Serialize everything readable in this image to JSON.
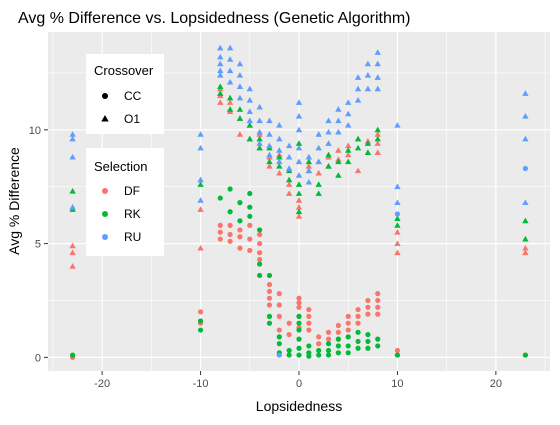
{
  "chart_data": {
    "type": "scatter",
    "title": "Avg % Difference vs. Lopsidedness (Genetic Algorithm)",
    "xlabel": "Lopsidedness",
    "ylabel": "Avg % Difference",
    "xlim": [
      -25.5,
      25.5
    ],
    "ylim": [
      -0.6,
      14.3
    ],
    "x_ticks": [
      -20,
      -10,
      0,
      10,
      20
    ],
    "y_ticks": [
      0,
      5,
      10
    ],
    "grid": true,
    "background": "#EBEBEB",
    "legend": {
      "placement": "top-left",
      "shape_title": "Crossover",
      "shapes": [
        {
          "label": "CC",
          "marker": "circle"
        },
        {
          "label": "O1",
          "marker": "triangle"
        }
      ],
      "color_title": "Selection",
      "colors": [
        {
          "label": "DF",
          "color": "#F8766D"
        },
        {
          "label": "RK",
          "color": "#00BA38"
        },
        {
          "label": "RU",
          "color": "#619CFF"
        }
      ]
    },
    "series": [
      {
        "selection": "DF",
        "crossover": "CC",
        "color": "#F8766D",
        "marker": "circle",
        "points": [
          [
            -23,
            0
          ],
          [
            -10,
            1.5
          ],
          [
            -10,
            2
          ],
          [
            -8,
            5.8
          ],
          [
            -8,
            5.5
          ],
          [
            -8,
            5.2
          ],
          [
            -7,
            5.8
          ],
          [
            -7,
            5.4
          ],
          [
            -7,
            5.1
          ],
          [
            -6,
            5.6
          ],
          [
            -6,
            5.3
          ],
          [
            -6,
            4.8
          ],
          [
            -5,
            5.8
          ],
          [
            -5,
            5.2
          ],
          [
            -5,
            4.7
          ],
          [
            -4,
            5.4
          ],
          [
            -4,
            5.0
          ],
          [
            -4,
            4.6
          ],
          [
            -4,
            4.3
          ],
          [
            -3,
            3.2
          ],
          [
            -3,
            2.9
          ],
          [
            -3,
            2.6
          ],
          [
            -3,
            2.3
          ],
          [
            -2,
            2.8
          ],
          [
            -2,
            2.3
          ],
          [
            -2,
            1.8
          ],
          [
            -2,
            1.2
          ],
          [
            -1,
            1.5
          ],
          [
            -1,
            1.0
          ],
          [
            0,
            2.6
          ],
          [
            0,
            2.4
          ],
          [
            0,
            2.2
          ],
          [
            0,
            1.8
          ],
          [
            0,
            1.3
          ],
          [
            1,
            2.1
          ],
          [
            1,
            1.8
          ],
          [
            1,
            1.5
          ],
          [
            1,
            1.2
          ],
          [
            2,
            0.9
          ],
          [
            2,
            0.6
          ],
          [
            3,
            1.1
          ],
          [
            3,
            0.8
          ],
          [
            4,
            1.4
          ],
          [
            4,
            1.1
          ],
          [
            4,
            0.8
          ],
          [
            5,
            1.8
          ],
          [
            5,
            1.5
          ],
          [
            5,
            1.2
          ],
          [
            6,
            2.1
          ],
          [
            6,
            1.8
          ],
          [
            6,
            1.5
          ],
          [
            7,
            2.5
          ],
          [
            7,
            2.2
          ],
          [
            7,
            1.9
          ],
          [
            8,
            2.8
          ],
          [
            8,
            2.5
          ],
          [
            8,
            2.2
          ],
          [
            8,
            1.9
          ],
          [
            10,
            0.3
          ],
          [
            10,
            0.1
          ],
          [
            23,
            0.1
          ]
        ]
      },
      {
        "selection": "DF",
        "crossover": "O1",
        "color": "#F8766D",
        "marker": "triangle",
        "points": [
          [
            -23,
            4.0
          ],
          [
            -23,
            4.6
          ],
          [
            -23,
            4.9
          ],
          [
            -10,
            4.8
          ],
          [
            -10,
            6.5
          ],
          [
            -8,
            11.2
          ],
          [
            -8,
            11.5
          ],
          [
            -8,
            11.8
          ],
          [
            -7,
            10.8
          ],
          [
            -7,
            11.2
          ],
          [
            -6,
            10.5
          ],
          [
            -6,
            9.8
          ],
          [
            -5,
            10.2
          ],
          [
            -5,
            9.6
          ],
          [
            -4,
            9.8
          ],
          [
            -4,
            9.2
          ],
          [
            -3,
            8.8
          ],
          [
            -3,
            8.4
          ],
          [
            -2,
            8.9
          ],
          [
            -2,
            8.1
          ],
          [
            -1,
            7.6
          ],
          [
            -1,
            7.2
          ],
          [
            0,
            6.9
          ],
          [
            0,
            6.6
          ],
          [
            0,
            6.2
          ],
          [
            1,
            8.8
          ],
          [
            1,
            8.4
          ],
          [
            2,
            8.6
          ],
          [
            2,
            8.1
          ],
          [
            3,
            8.8
          ],
          [
            3,
            8.4
          ],
          [
            4,
            9.1
          ],
          [
            4,
            8.7
          ],
          [
            5,
            9.3
          ],
          [
            5,
            8.9
          ],
          [
            6,
            8.2
          ],
          [
            6,
            9.6
          ],
          [
            7,
            9.5
          ],
          [
            7,
            9.0
          ],
          [
            8,
            9.8
          ],
          [
            8,
            9.4
          ],
          [
            8,
            9.0
          ],
          [
            10,
            5.5
          ],
          [
            10,
            5.0
          ],
          [
            10,
            4.6
          ],
          [
            23,
            4.6
          ],
          [
            23,
            4.8
          ]
        ]
      },
      {
        "selection": "RK",
        "crossover": "CC",
        "color": "#00BA38",
        "marker": "circle",
        "points": [
          [
            -23,
            0.1
          ],
          [
            -10,
            1.2
          ],
          [
            -10,
            1.6
          ],
          [
            -8,
            7.0
          ],
          [
            -7,
            6.4
          ],
          [
            -7,
            7.4
          ],
          [
            -6,
            6.0
          ],
          [
            -6,
            6.8
          ],
          [
            -5,
            6.2
          ],
          [
            -5,
            6.6
          ],
          [
            -5,
            7.2
          ],
          [
            -4,
            4.1
          ],
          [
            -4,
            3.6
          ],
          [
            -4,
            5.6
          ],
          [
            -3,
            1.8
          ],
          [
            -3,
            1.5
          ],
          [
            -3,
            3.6
          ],
          [
            -2,
            0.9
          ],
          [
            -2,
            0.6
          ],
          [
            -2,
            0.2
          ],
          [
            -1,
            0.3
          ],
          [
            -1,
            0.1
          ],
          [
            0,
            1.8
          ],
          [
            0,
            1.5
          ],
          [
            0,
            1.2
          ],
          [
            0,
            0.8
          ],
          [
            0,
            0.4
          ],
          [
            0,
            0.1
          ],
          [
            1,
            0.5
          ],
          [
            1,
            0.2
          ],
          [
            1,
            0.05
          ],
          [
            2,
            0.3
          ],
          [
            2,
            0.1
          ],
          [
            3,
            0.6
          ],
          [
            3,
            0.3
          ],
          [
            3,
            0.1
          ],
          [
            4,
            0.8
          ],
          [
            4,
            0.5
          ],
          [
            4,
            0.2
          ],
          [
            5,
            0.9
          ],
          [
            5,
            0.5
          ],
          [
            5,
            0.2
          ],
          [
            6,
            1.1
          ],
          [
            6,
            0.7
          ],
          [
            6,
            0.4
          ],
          [
            7,
            1.0
          ],
          [
            7,
            0.7
          ],
          [
            7,
            0.4
          ],
          [
            8,
            0.8
          ],
          [
            8,
            0.5
          ],
          [
            10,
            0.1
          ],
          [
            23,
            0.1
          ]
        ]
      },
      {
        "selection": "RK",
        "crossover": "O1",
        "color": "#00BA38",
        "marker": "triangle",
        "points": [
          [
            -23,
            7.3
          ],
          [
            -23,
            6.5
          ],
          [
            -10,
            7.6
          ],
          [
            -8,
            11.6
          ],
          [
            -8,
            11.9
          ],
          [
            -7,
            10.9
          ],
          [
            -7,
            11.4
          ],
          [
            -6,
            10.5
          ],
          [
            -6,
            10.9
          ],
          [
            -5,
            9.6
          ],
          [
            -5,
            10.2
          ],
          [
            -4,
            9.2
          ],
          [
            -4,
            9.6
          ],
          [
            -3,
            8.6
          ],
          [
            -3,
            9.2
          ],
          [
            -2,
            8.4
          ],
          [
            -2,
            8.8
          ],
          [
            -1,
            7.8
          ],
          [
            -1,
            8.2
          ],
          [
            0,
            7.2
          ],
          [
            0,
            7.6
          ],
          [
            0,
            6.4
          ],
          [
            0,
            9.4
          ],
          [
            1,
            8.2
          ],
          [
            1,
            8.6
          ],
          [
            2,
            7.2
          ],
          [
            2,
            7.6
          ],
          [
            3,
            8.4
          ],
          [
            3,
            8.9
          ],
          [
            4,
            8.0
          ],
          [
            4,
            8.6
          ],
          [
            5,
            8.6
          ],
          [
            5,
            9.1
          ],
          [
            6,
            9.2
          ],
          [
            6,
            9.6
          ],
          [
            7,
            9.0
          ],
          [
            7,
            9.4
          ],
          [
            8,
            9.6
          ],
          [
            8,
            10.0
          ],
          [
            10,
            6.1
          ],
          [
            10,
            5.8
          ],
          [
            23,
            5.2
          ],
          [
            23,
            6.0
          ]
        ]
      },
      {
        "selection": "RU",
        "crossover": "CC",
        "color": "#619CFF",
        "marker": "circle",
        "points": [
          [
            -2,
            0.1
          ],
          [
            23,
            8.3
          ],
          [
            10,
            6.3
          ]
        ]
      },
      {
        "selection": "RU",
        "crossover": "O1",
        "color": "#619CFF",
        "marker": "triangle",
        "points": [
          [
            -23,
            9.8
          ],
          [
            -23,
            9.6
          ],
          [
            -23,
            8.8
          ],
          [
            -23,
            6.6
          ],
          [
            -10,
            9.2
          ],
          [
            -10,
            9.8
          ],
          [
            -10,
            7.8
          ],
          [
            -10,
            6.9
          ],
          [
            -8,
            13.6
          ],
          [
            -8,
            13.2
          ],
          [
            -8,
            12.9
          ],
          [
            -8,
            12.6
          ],
          [
            -8,
            12.4
          ],
          [
            -7,
            13.6
          ],
          [
            -7,
            13.1
          ],
          [
            -7,
            12.6
          ],
          [
            -7,
            12.1
          ],
          [
            -6,
            12.9
          ],
          [
            -6,
            12.4
          ],
          [
            -6,
            11.9
          ],
          [
            -6,
            11.4
          ],
          [
            -5,
            11.8
          ],
          [
            -5,
            11.3
          ],
          [
            -5,
            10.8
          ],
          [
            -5,
            10.4
          ],
          [
            -4,
            11.0
          ],
          [
            -4,
            10.4
          ],
          [
            -4,
            9.9
          ],
          [
            -4,
            9.4
          ],
          [
            -3,
            10.4
          ],
          [
            -3,
            9.8
          ],
          [
            -3,
            9.3
          ],
          [
            -3,
            8.9
          ],
          [
            -2,
            10.2
          ],
          [
            -2,
            9.6
          ],
          [
            -2,
            9.1
          ],
          [
            -2,
            8.6
          ],
          [
            -1,
            9.3
          ],
          [
            -1,
            8.8
          ],
          [
            -1,
            8.3
          ],
          [
            0,
            11.2
          ],
          [
            0,
            10.6
          ],
          [
            0,
            10.0
          ],
          [
            0,
            9.2
          ],
          [
            0,
            8.6
          ],
          [
            0,
            8.0
          ],
          [
            1,
            8.8
          ],
          [
            1,
            8.2
          ],
          [
            1,
            7.7
          ],
          [
            2,
            9.8
          ],
          [
            2,
            9.2
          ],
          [
            2,
            8.6
          ],
          [
            3,
            10.4
          ],
          [
            3,
            9.9
          ],
          [
            3,
            9.4
          ],
          [
            4,
            10.9
          ],
          [
            4,
            10.4
          ],
          [
            4,
            9.9
          ],
          [
            5,
            11.2
          ],
          [
            5,
            10.7
          ],
          [
            5,
            10.2
          ],
          [
            6,
            12.3
          ],
          [
            6,
            11.8
          ],
          [
            6,
            11.3
          ],
          [
            7,
            12.9
          ],
          [
            7,
            12.4
          ],
          [
            7,
            11.8
          ],
          [
            8,
            13.4
          ],
          [
            8,
            12.9
          ],
          [
            8,
            12.3
          ],
          [
            8,
            11.8
          ],
          [
            10,
            10.2
          ],
          [
            10,
            7.5
          ],
          [
            10,
            6.8
          ],
          [
            23,
            11.6
          ],
          [
            23,
            10.6
          ],
          [
            23,
            9.6
          ],
          [
            23,
            6.8
          ]
        ]
      }
    ]
  }
}
